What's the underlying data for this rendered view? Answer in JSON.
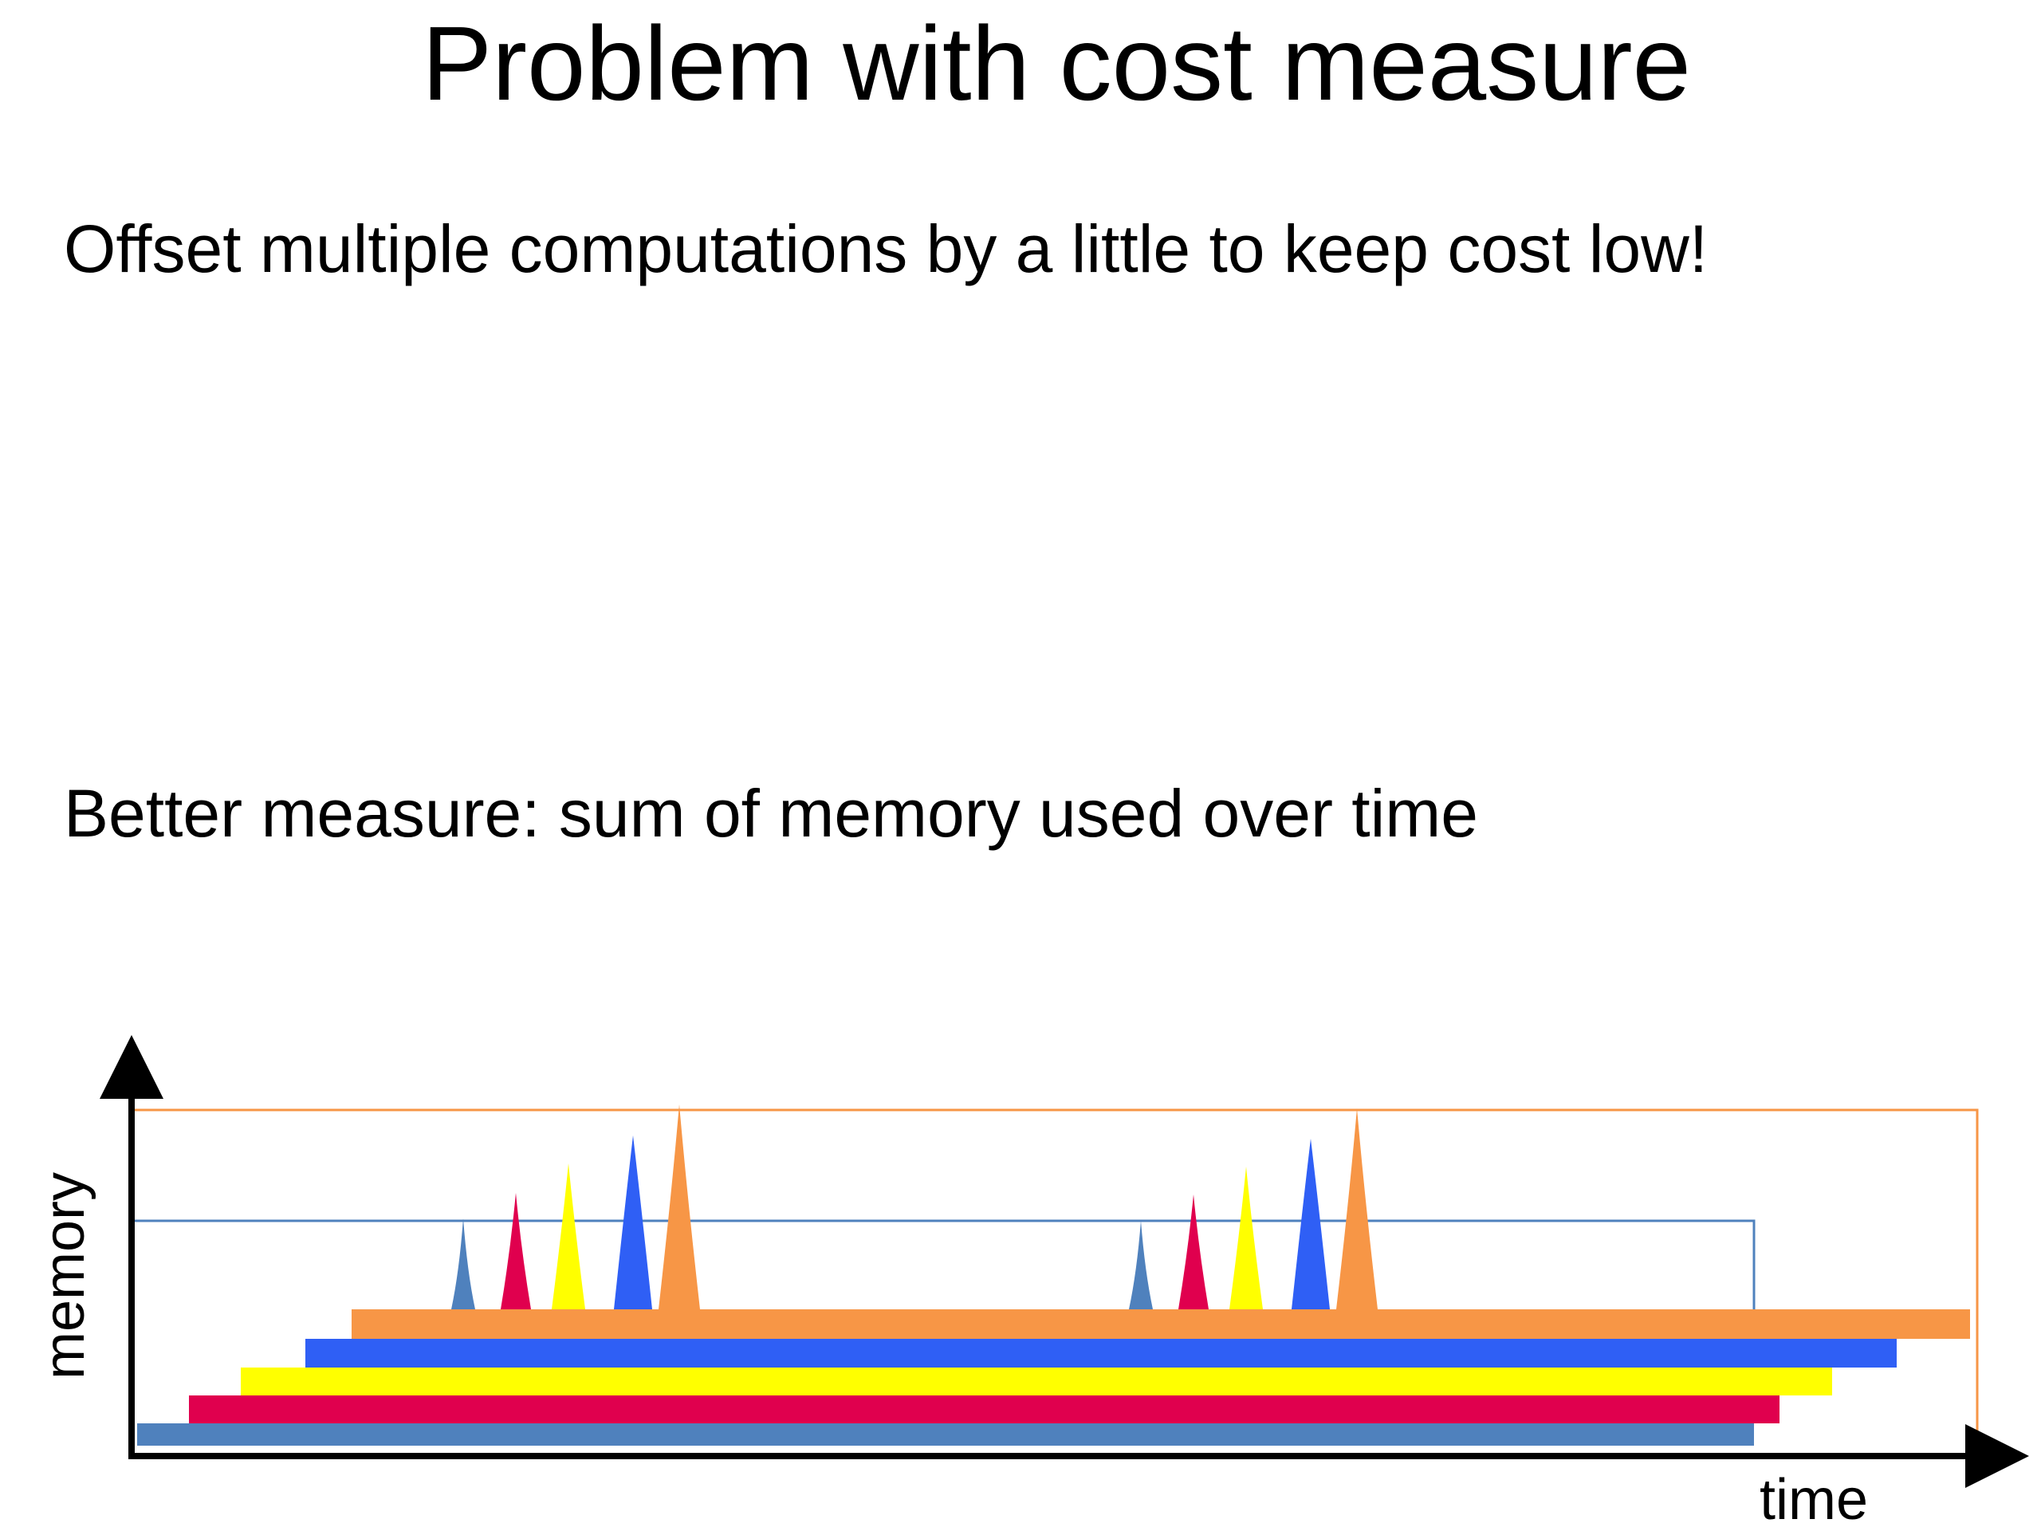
{
  "slide": {
    "title": "Problem with cost measure",
    "bullets": [
      "Offset multiple computations by a little to keep cost low!",
      "Better measure: sum of memory used over time"
    ]
  },
  "diagram": {
    "x_axis_label": "time",
    "y_axis_label": "memory",
    "colors": {
      "steel_blue": "#4f81bd",
      "crimson": "#e0004e",
      "yellow": "#ffff00",
      "blue": "#2f5ff5",
      "orange": "#f79646"
    }
  }
}
